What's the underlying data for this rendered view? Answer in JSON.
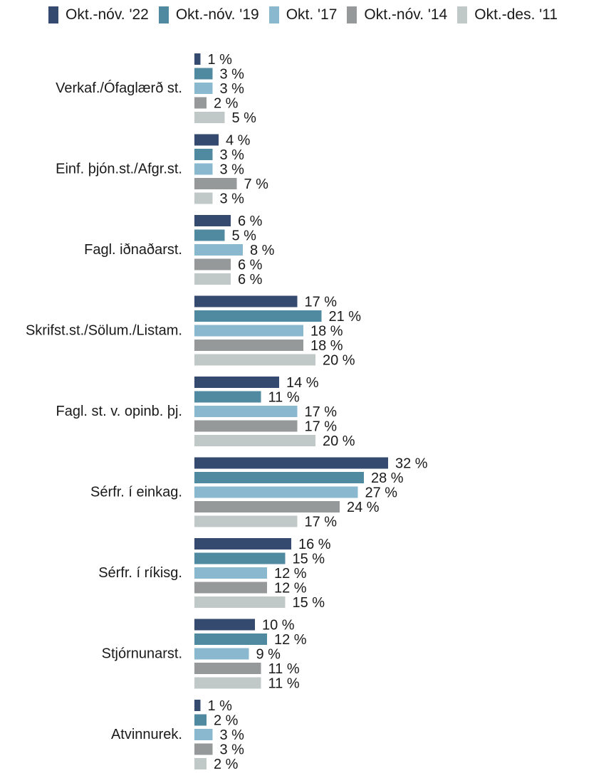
{
  "colors": {
    "Okt.-nóv. '22": "#344a6e",
    "Okt.-nóv. '19": "#4f8aa1",
    "Okt. '17": "#8ab9cf",
    "Okt.-nóv. '14": "#95999a",
    "Okt.-des. '11": "#c1c8c8"
  },
  "chart_data": {
    "type": "bar",
    "orientation": "horizontal",
    "title": "",
    "xlabel": "",
    "ylabel": "",
    "xlim": [
      0,
      32
    ],
    "grid": false,
    "legend_position": "top",
    "value_suffix": " %",
    "categories": [
      "Verkaf./Ófaglærð st.",
      "Einf. þjón.st./Afgr.st.",
      "Fagl. iðnaðarst.",
      "Skrifst.st./Sölum./Listam.",
      "Fagl. st. v. opinb. þj.",
      "Sérfr. í einkag.",
      "Sérfr. í ríkisg.",
      "Stjórnunarst.",
      "Atvinnurek."
    ],
    "series": [
      {
        "name": "Okt.-nóv. '22",
        "values": [
          1,
          4,
          6,
          17,
          14,
          32,
          16,
          10,
          1
        ]
      },
      {
        "name": "Okt.-nóv. '19",
        "values": [
          3,
          3,
          5,
          21,
          11,
          28,
          15,
          12,
          2
        ]
      },
      {
        "name": "Okt. '17",
        "values": [
          3,
          3,
          8,
          18,
          17,
          27,
          12,
          9,
          3
        ]
      },
      {
        "name": "Okt.-nóv. '14",
        "values": [
          2,
          7,
          6,
          18,
          17,
          24,
          12,
          11,
          3
        ]
      },
      {
        "name": "Okt.-des. '11",
        "values": [
          5,
          3,
          6,
          20,
          20,
          17,
          15,
          11,
          2
        ]
      }
    ]
  }
}
